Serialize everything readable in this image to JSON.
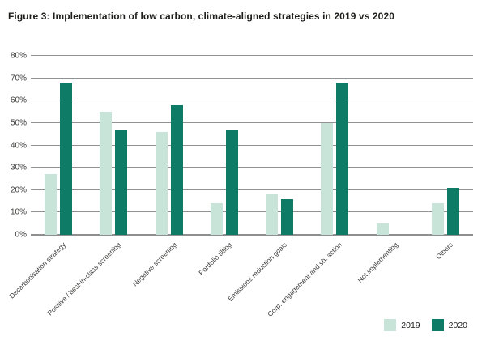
{
  "title": "Figure 3: Implementation of low carbon, climate-aligned strategies in 2019 vs 2020",
  "colors": {
    "series_2019": "#c8e3d8",
    "series_2020": "#0d7b65",
    "gridline": "#909294",
    "axis_text": "#3c3c3b",
    "title_text": "#1d1d1b",
    "background": "#ffffff"
  },
  "chart_data": {
    "type": "bar",
    "title": "Figure 3: Implementation of low carbon, climate-aligned strategies in 2019 vs 2020",
    "xlabel": "",
    "ylabel": "",
    "ylim": [
      0,
      80
    ],
    "ytick_step": 10,
    "ytick_labels": [
      "0%",
      "10%",
      "20%",
      "30%",
      "40%",
      "50%",
      "60%",
      "70%",
      "80%"
    ],
    "grid": true,
    "legend_position": "bottom-right",
    "categories": [
      "Decarbonisation strategy",
      "Positive / best-in-class screening",
      "Negative screening",
      "Portfolio tilting",
      "Emissions reduction goals",
      "Corp. engagement and sh. action",
      "Not implementing",
      "Others"
    ],
    "series": [
      {
        "name": "2019",
        "color": "#c8e3d8",
        "values": [
          27,
          55,
          46,
          14,
          18,
          50,
          5,
          14
        ]
      },
      {
        "name": "2020",
        "color": "#0d7b65",
        "values": [
          68,
          47,
          58,
          47,
          16,
          68,
          0,
          21
        ]
      }
    ]
  }
}
